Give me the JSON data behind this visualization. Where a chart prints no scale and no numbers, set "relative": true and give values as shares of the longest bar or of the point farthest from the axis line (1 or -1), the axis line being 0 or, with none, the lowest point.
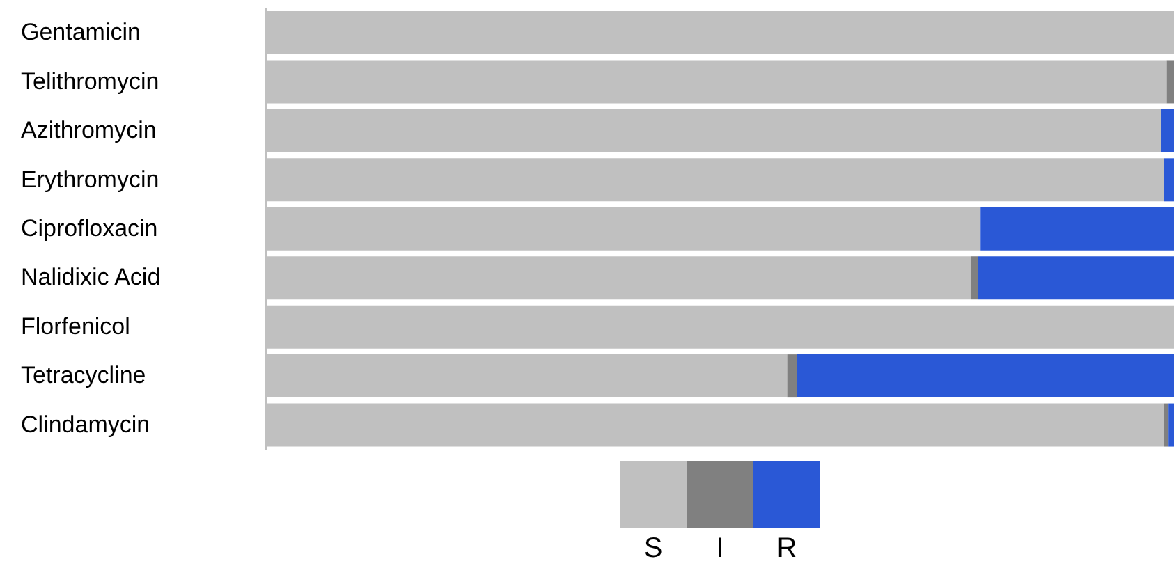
{
  "chart_data": {
    "type": "bar",
    "orientation": "horizontal",
    "stacked": true,
    "relative": true,
    "legend": "bottom",
    "categories": [
      "Gentamicin",
      "Telithromycin",
      "Azithromycin",
      "Erythromycin",
      "Ciprofloxacin",
      "Nalidixic Acid",
      "Florfenicol",
      "Tetracycline",
      "Clindamycin"
    ],
    "series": [
      {
        "name": "S",
        "color": "#c0c0c0",
        "values": [
          1,
          0.992,
          0.986,
          0.989,
          0.787,
          0.776,
          1,
          0.574,
          0.989
        ]
      },
      {
        "name": "I",
        "color": "#808080",
        "values": [
          0,
          0.008,
          0,
          0,
          0,
          0.008,
          0,
          0.011,
          0.005
        ]
      },
      {
        "name": "R",
        "color": "#2a58d6",
        "values": [
          0,
          0,
          0.014,
          0.011,
          0.213,
          0.216,
          0,
          0.415,
          0.006
        ]
      }
    ]
  }
}
